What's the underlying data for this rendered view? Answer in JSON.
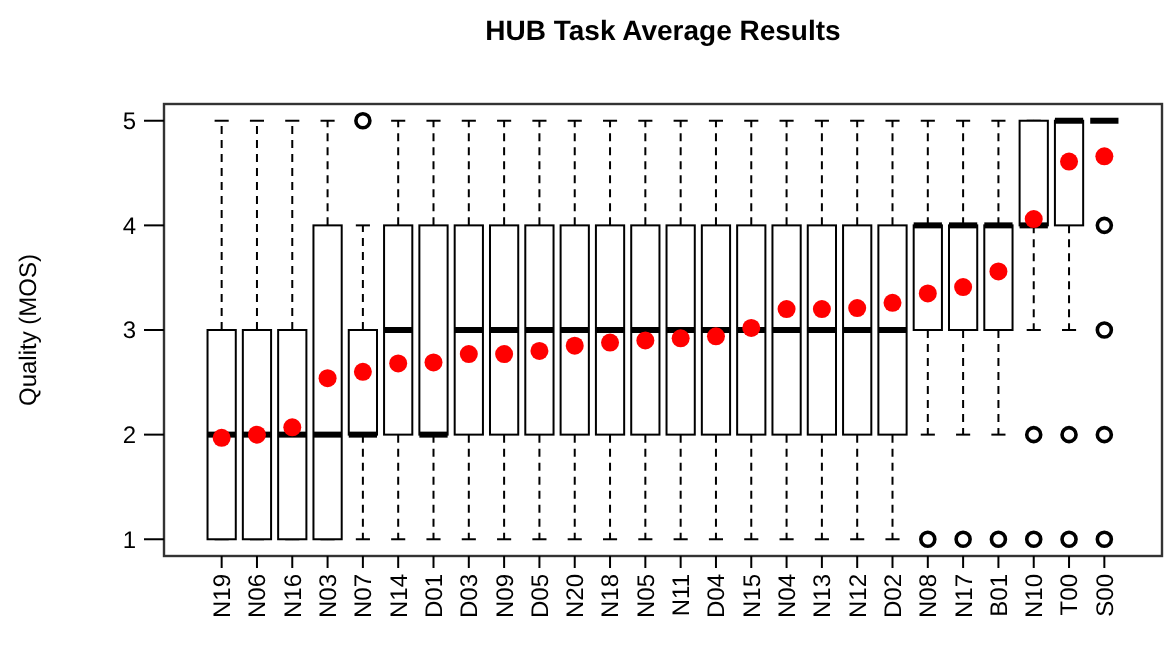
{
  "chart_data": {
    "type": "box",
    "title": "HUB Task Average Results",
    "ylabel": "Quality (MOS)",
    "categories": [
      "N19",
      "N06",
      "N16",
      "N03",
      "N07",
      "N14",
      "D01",
      "D03",
      "N09",
      "D05",
      "N20",
      "N18",
      "N05",
      "N11",
      "D04",
      "N15",
      "N04",
      "N13",
      "N12",
      "D02",
      "N08",
      "N17",
      "B01",
      "N10",
      "T00",
      "S00"
    ],
    "ylim": [
      0.84,
      5.16
    ],
    "yticks": [
      1,
      2,
      3,
      4,
      5
    ],
    "grid": false,
    "color": "#000000",
    "boxes": [
      {
        "low": 1,
        "q1": 1,
        "median": 2,
        "q3": 3,
        "high": 5
      },
      {
        "low": 1,
        "q1": 1,
        "median": 2,
        "q3": 3,
        "high": 5
      },
      {
        "low": 1,
        "q1": 1,
        "median": 2,
        "q3": 3,
        "high": 5
      },
      {
        "low": 1,
        "q1": 1,
        "median": 2,
        "q3": 4,
        "high": 5
      },
      {
        "low": 1,
        "q1": 2,
        "median": 2,
        "q3": 3,
        "high": 4,
        "outliers": [
          5
        ]
      },
      {
        "low": 1,
        "q1": 2,
        "median": 3,
        "q3": 4,
        "high": 5
      },
      {
        "low": 1,
        "q1": 2,
        "median": 2,
        "q3": 4,
        "high": 5
      },
      {
        "low": 1,
        "q1": 2,
        "median": 3,
        "q3": 4,
        "high": 5
      },
      {
        "low": 1,
        "q1": 2,
        "median": 3,
        "q3": 4,
        "high": 5
      },
      {
        "low": 1,
        "q1": 2,
        "median": 3,
        "q3": 4,
        "high": 5
      },
      {
        "low": 1,
        "q1": 2,
        "median": 3,
        "q3": 4,
        "high": 5
      },
      {
        "low": 1,
        "q1": 2,
        "median": 3,
        "q3": 4,
        "high": 5
      },
      {
        "low": 1,
        "q1": 2,
        "median": 3,
        "q3": 4,
        "high": 5
      },
      {
        "low": 1,
        "q1": 2,
        "median": 3,
        "q3": 4,
        "high": 5
      },
      {
        "low": 1,
        "q1": 2,
        "median": 3,
        "q3": 4,
        "high": 5
      },
      {
        "low": 1,
        "q1": 2,
        "median": 3,
        "q3": 4,
        "high": 5
      },
      {
        "low": 1,
        "q1": 2,
        "median": 3,
        "q3": 4,
        "high": 5
      },
      {
        "low": 1,
        "q1": 2,
        "median": 3,
        "q3": 4,
        "high": 5
      },
      {
        "low": 1,
        "q1": 2,
        "median": 3,
        "q3": 4,
        "high": 5
      },
      {
        "low": 1,
        "q1": 2,
        "median": 3,
        "q3": 4,
        "high": 5
      },
      {
        "low": 2,
        "q1": 3,
        "median": 4,
        "q3": 4,
        "high": 5,
        "outliers": [
          1
        ]
      },
      {
        "low": 2,
        "q1": 3,
        "median": 4,
        "q3": 4,
        "high": 5,
        "outliers": [
          1
        ]
      },
      {
        "low": 2,
        "q1": 3,
        "median": 4,
        "q3": 4,
        "high": 5,
        "outliers": [
          1
        ]
      },
      {
        "low": 3,
        "q1": 4,
        "median": 4,
        "q3": 5,
        "high": 5,
        "outliers": [
          1,
          2
        ]
      },
      {
        "low": 3,
        "q1": 4,
        "median": 5,
        "q3": 5,
        "high": 5,
        "outliers": [
          1,
          2
        ]
      },
      {
        "low": 5,
        "q1": 5,
        "median": 5,
        "q3": 5,
        "high": 5,
        "outliers": [
          1,
          2,
          3,
          4
        ]
      }
    ],
    "series": [
      {
        "type": "scatter",
        "color": "#ff0000",
        "marker": "circle",
        "values": [
          1.97,
          2.0,
          2.07,
          2.54,
          2.6,
          2.68,
          2.69,
          2.77,
          2.77,
          2.8,
          2.85,
          2.88,
          2.9,
          2.92,
          2.94,
          3.02,
          3.2,
          3.2,
          3.21,
          3.26,
          3.35,
          3.41,
          3.56,
          4.06,
          4.61,
          4.66
        ]
      }
    ]
  }
}
